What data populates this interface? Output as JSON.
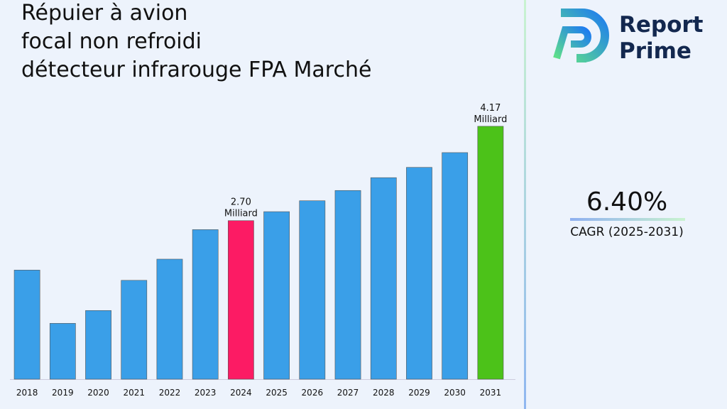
{
  "chart_data": {
    "type": "bar",
    "title": [
      "Répuier à avion",
      "focal non refroidi",
      "détecteur infrarouge FPA Marché"
    ],
    "categories": [
      "2018",
      "2019",
      "2020",
      "2021",
      "2022",
      "2023",
      "2024",
      "2025",
      "2026",
      "2027",
      "2028",
      "2029",
      "2030",
      "2031"
    ],
    "values": [
      1.93,
      1.1,
      1.3,
      1.77,
      2.1,
      2.56,
      2.7,
      2.84,
      3.01,
      3.17,
      3.37,
      3.53,
      3.76,
      4.17
    ],
    "value_labels": [
      null,
      null,
      null,
      null,
      null,
      null,
      "2.70 Milliard",
      null,
      null,
      null,
      null,
      null,
      null,
      "4.17 Milliard"
    ],
    "colors": [
      "#3a9fe8",
      "#3a9fe8",
      "#3a9fe8",
      "#3a9fe8",
      "#3a9fe8",
      "#3a9fe8",
      "#fc1b64",
      "#3a9fe8",
      "#3a9fe8",
      "#3a9fe8",
      "#3a9fe8",
      "#3a9fe8",
      "#3a9fe8",
      "#4cc219"
    ],
    "ylim": [
      0.23,
      4.6
    ]
  },
  "cagr": {
    "value": "6.40%",
    "label": "CAGR (2025-2031)"
  },
  "brand": [
    "Report",
    "Prime"
  ]
}
